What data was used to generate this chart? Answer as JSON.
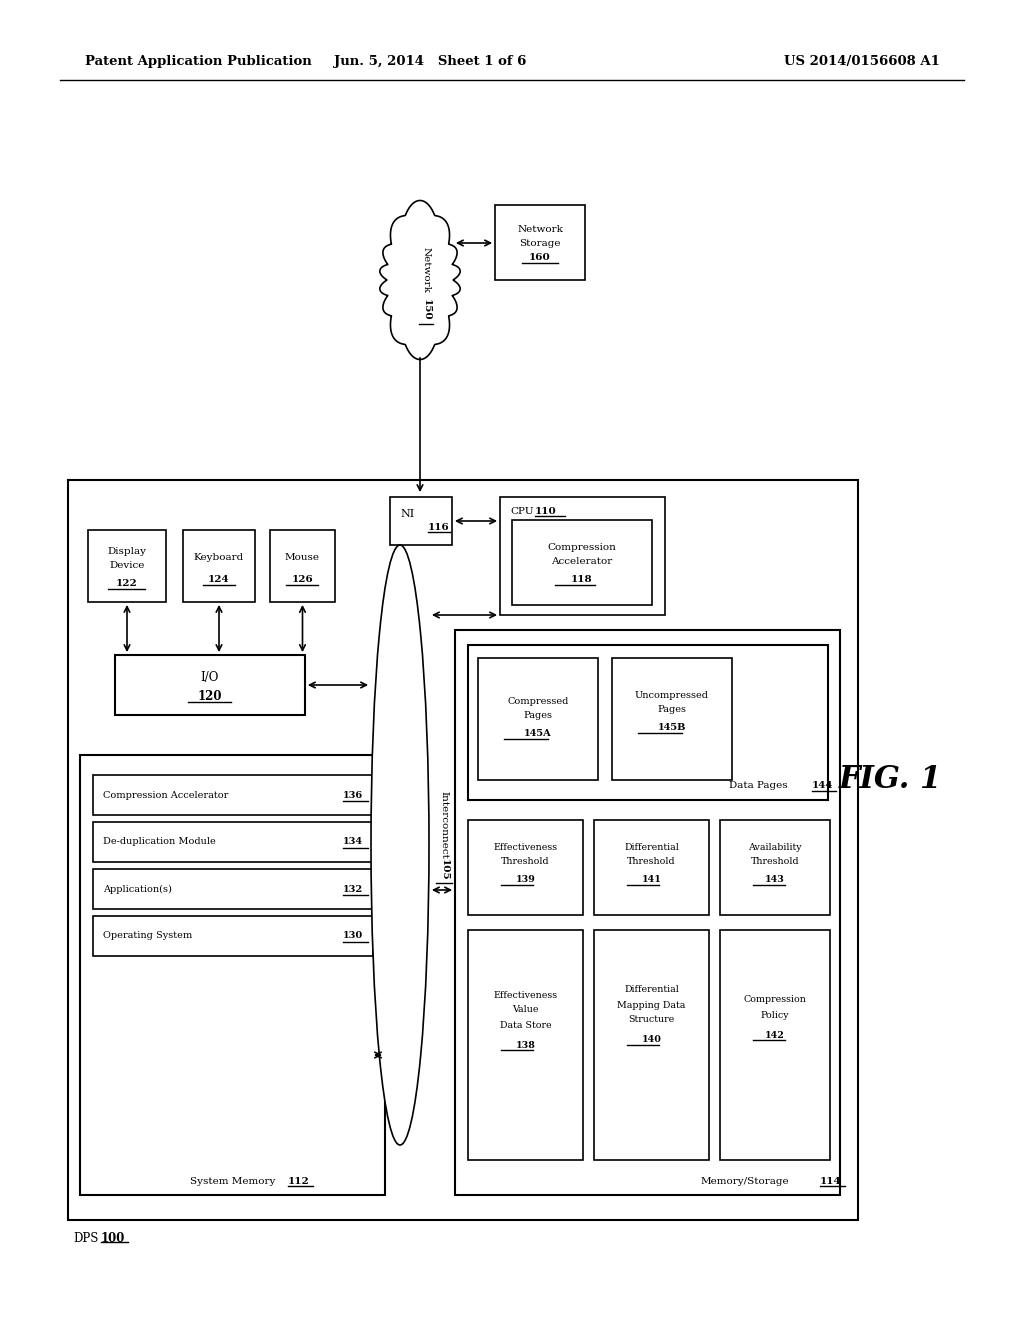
{
  "bg_color": "#ffffff",
  "header_left": "Patent Application Publication",
  "header_mid": "Jun. 5, 2014   Sheet 1 of 6",
  "header_right": "US 2014/0156608 A1",
  "fig_label": "FIG. 1"
}
